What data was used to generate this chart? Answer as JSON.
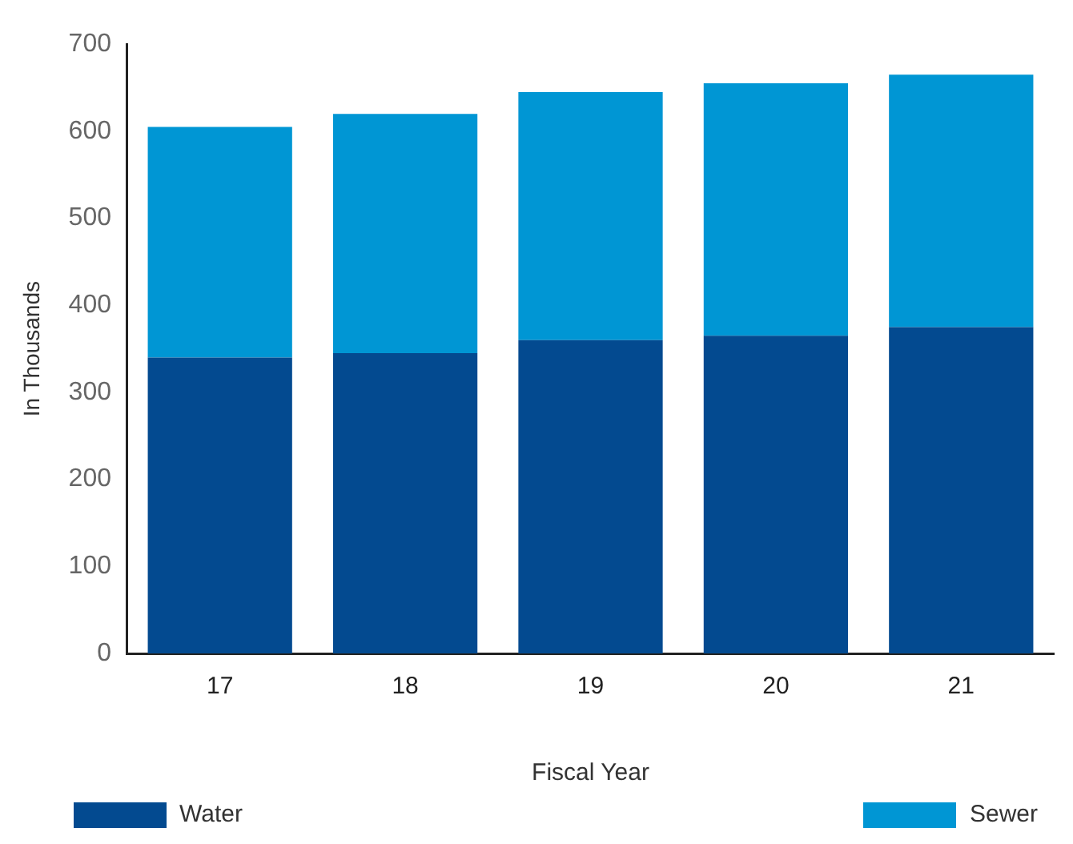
{
  "chart_data": {
    "type": "bar",
    "stacked": true,
    "xlabel": "Fiscal Year",
    "ylabel": "In Thousands",
    "categories": [
      "17",
      "18",
      "19",
      "20",
      "21"
    ],
    "series": [
      {
        "name": "Water",
        "color": "#034a90",
        "values": [
          340,
          345,
          360,
          365,
          375
        ]
      },
      {
        "name": "Sewer",
        "color": "#0096d4",
        "values": [
          265,
          275,
          285,
          290,
          290
        ]
      }
    ],
    "ylim": [
      0,
      700
    ],
    "yticks": [
      0,
      100,
      200,
      300,
      400,
      500,
      600,
      700
    ],
    "grid": false,
    "legend": "bottom"
  }
}
